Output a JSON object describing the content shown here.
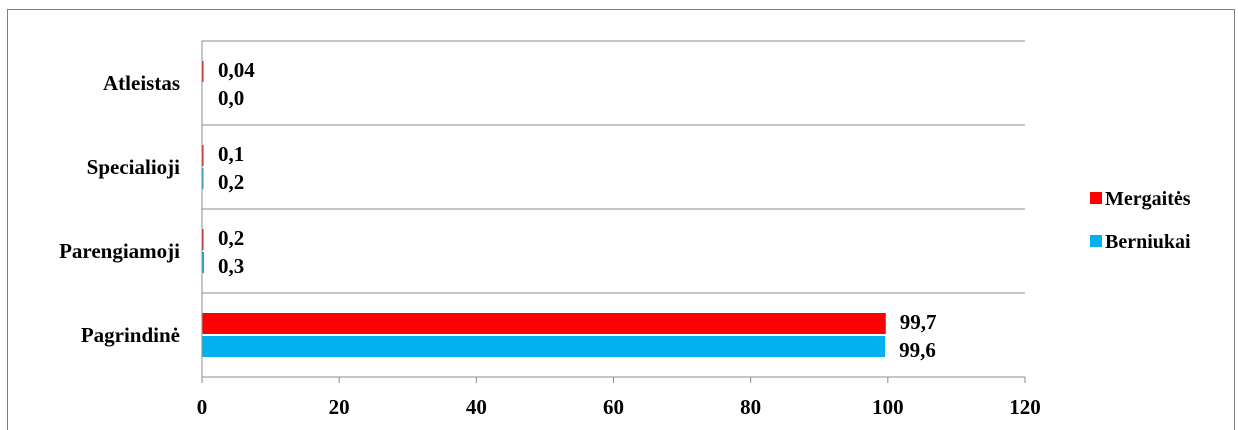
{
  "chart_data": {
    "type": "bar",
    "orientation": "horizontal",
    "categories": [
      "Pagrindinė",
      "Parengiamoji",
      "Specialioji",
      "Atleistas"
    ],
    "series": [
      {
        "name": "Mergaitės",
        "color": "#ff0000",
        "values": [
          99.7,
          0.2,
          0.1,
          0.04
        ],
        "labels": [
          "99,7",
          "0,2",
          "0,1",
          "0,04"
        ]
      },
      {
        "name": "Berniukai",
        "color": "#00b0f0",
        "values": [
          99.6,
          0.3,
          0.2,
          0.0
        ],
        "labels": [
          "99,6",
          "0,3",
          "0,2",
          "0,0"
        ]
      }
    ],
    "xlim": [
      0,
      120
    ],
    "x_ticks": [
      "0",
      "20",
      "40",
      "60",
      "80",
      "100",
      "120"
    ],
    "grid": true,
    "legend": "right"
  }
}
